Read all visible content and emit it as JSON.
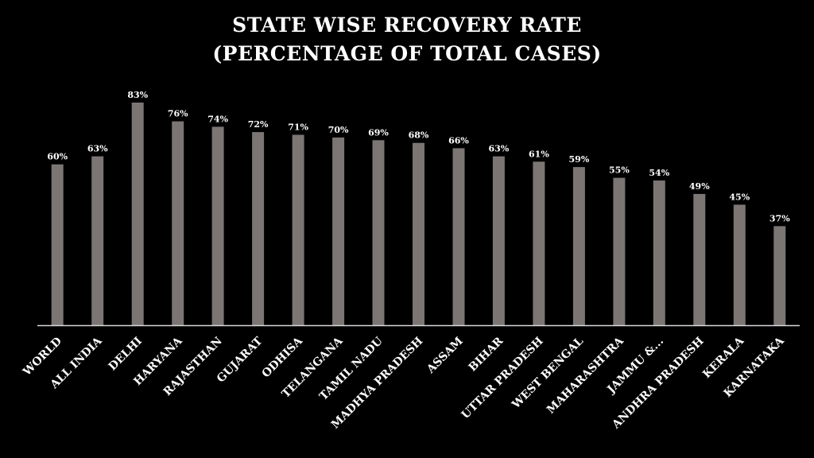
{
  "chart_data": {
    "type": "bar",
    "title_lines": [
      "STATE WISE RECOVERY RATE",
      "(PERCENTAGE OF TOTAL CASES)"
    ],
    "categories": [
      "WORLD",
      "ALL INDIA",
      "DELHI",
      "HARYANA",
      "RAJASTHAN",
      "GUJARAT",
      "ODHISA",
      "TELANGANA",
      "TAMIL NADU",
      "MADHYA PRADESH",
      "ASSAM",
      "BIHAR",
      "UTTAR PRADESH",
      "WEST BENGAL",
      "MAHARASHTRA",
      "JAMMU &...",
      "ANDHRA PRADESH",
      "KERALA",
      "KARNATAKA"
    ],
    "values": [
      60,
      63,
      83,
      76,
      74,
      72,
      71,
      70,
      69,
      68,
      66,
      63,
      61,
      59,
      55,
      54,
      49,
      45,
      37
    ],
    "value_suffix": "%",
    "ylim": [
      0,
      100
    ],
    "grid": false,
    "legend": "none",
    "colors": {
      "background": "#000000",
      "bar": "#7b7574",
      "text": "#ffffff",
      "axis": "#d9d9d9"
    }
  }
}
